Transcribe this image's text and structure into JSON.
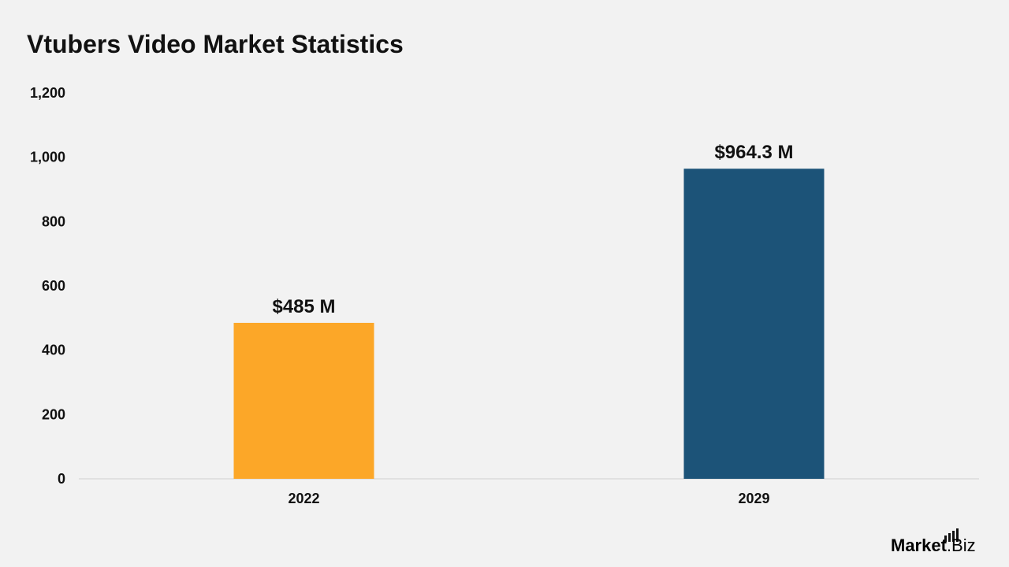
{
  "chart_data": {
    "type": "bar",
    "title": "Vtubers Video Market Statistics",
    "categories": [
      "2022",
      "2029"
    ],
    "values": [
      485,
      964.3
    ],
    "value_labels": [
      "$485 M",
      "$964.3 M"
    ],
    "bar_colors": [
      "#fca728",
      "#1c5378"
    ],
    "ylim": [
      0,
      1200
    ],
    "yticks": [
      0,
      200,
      400,
      600,
      800,
      1000,
      1200
    ],
    "ytick_labels": [
      "0",
      "200",
      "400",
      "600",
      "800",
      "1,000",
      "1,200"
    ],
    "xlabel": "",
    "ylabel": "",
    "grid": false,
    "legend": "none"
  },
  "branding": {
    "logo_strong": "Market",
    "logo_light": ".Biz"
  }
}
